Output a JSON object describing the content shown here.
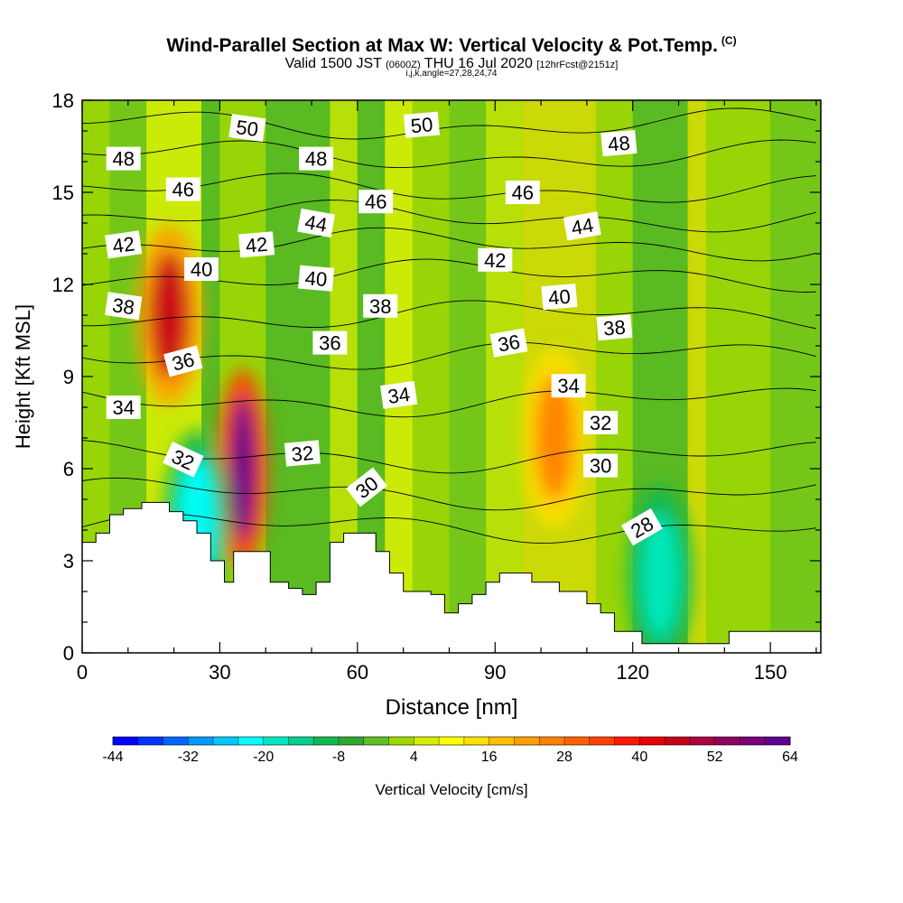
{
  "header": {
    "title": "Wind-Parallel Section at Max W: Vertical Velocity & Pot.Temp.",
    "copyright": "(C)",
    "valid_prefix": "Valid 1500 JST",
    "valid_utc": "(0600Z)",
    "valid_date": "THU 16 Jul 2020",
    "forecast": "[12hrFcst@2151z]",
    "indices": "i,j,k,angle=27,28,24,74"
  },
  "chart_data": {
    "type": "heatmap",
    "xlabel": "Distance [nm]",
    "ylabel": "Height [Kft MSL]",
    "xlim": [
      0,
      161
    ],
    "ylim": [
      0,
      18
    ],
    "x_ticks": [
      0,
      30,
      60,
      90,
      120,
      150
    ],
    "y_ticks": [
      0,
      3,
      6,
      9,
      12,
      15,
      18
    ],
    "colorbar": {
      "label": "Vertical Velocity [cm/s]",
      "min": -44,
      "max": 64,
      "step": 4,
      "tick_labels": [
        -44,
        -32,
        -20,
        -8,
        4,
        16,
        28,
        40,
        52,
        64
      ],
      "colors": [
        "#0000ff",
        "#0033ff",
        "#0066ff",
        "#0099ff",
        "#00c8ff",
        "#00ffff",
        "#00e8c0",
        "#00d090",
        "#10b850",
        "#30a830",
        "#60c020",
        "#a0d800",
        "#d8ec00",
        "#ffff00",
        "#ffe000",
        "#ffc000",
        "#ffa000",
        "#ff8000",
        "#ff6000",
        "#ff4000",
        "#ff1800",
        "#e80000",
        "#c80018",
        "#a80040",
        "#900060",
        "#780078",
        "#600090"
      ]
    },
    "terrain_kft": [
      [
        0,
        3.6
      ],
      [
        3,
        3.6
      ],
      [
        3,
        3.9
      ],
      [
        6,
        3.9
      ],
      [
        6,
        4.5
      ],
      [
        9,
        4.5
      ],
      [
        9,
        4.7
      ],
      [
        13,
        4.7
      ],
      [
        13,
        4.9
      ],
      [
        19,
        4.9
      ],
      [
        19,
        4.6
      ],
      [
        22,
        4.6
      ],
      [
        22,
        4.3
      ],
      [
        25,
        4.3
      ],
      [
        25,
        3.9
      ],
      [
        28,
        3.9
      ],
      [
        28,
        3.0
      ],
      [
        31,
        3.0
      ],
      [
        31,
        2.3
      ],
      [
        33,
        2.3
      ],
      [
        33,
        3.3
      ],
      [
        41,
        3.3
      ],
      [
        41,
        2.3
      ],
      [
        45,
        2.3
      ],
      [
        45,
        2.1
      ],
      [
        48,
        2.1
      ],
      [
        48,
        1.9
      ],
      [
        51,
        1.9
      ],
      [
        51,
        2.3
      ],
      [
        54,
        2.3
      ],
      [
        54,
        3.6
      ],
      [
        57,
        3.6
      ],
      [
        57,
        3.9
      ],
      [
        64,
        3.9
      ],
      [
        64,
        3.3
      ],
      [
        67,
        3.3
      ],
      [
        67,
        2.6
      ],
      [
        70,
        2.6
      ],
      [
        70,
        2.0
      ],
      [
        76,
        2.0
      ],
      [
        76,
        1.9
      ],
      [
        79,
        1.9
      ],
      [
        79,
        1.3
      ],
      [
        82,
        1.3
      ],
      [
        82,
        1.6
      ],
      [
        85,
        1.6
      ],
      [
        85,
        1.9
      ],
      [
        88,
        1.9
      ],
      [
        88,
        2.3
      ],
      [
        91,
        2.3
      ],
      [
        91,
        2.6
      ],
      [
        98,
        2.6
      ],
      [
        98,
        2.3
      ],
      [
        104,
        2.3
      ],
      [
        104,
        2.0
      ],
      [
        110,
        2.0
      ],
      [
        110,
        1.6
      ],
      [
        113,
        1.6
      ],
      [
        113,
        1.3
      ],
      [
        116,
        1.3
      ],
      [
        116,
        0.7
      ],
      [
        122,
        0.7
      ],
      [
        122,
        0.3
      ],
      [
        141,
        0.3
      ],
      [
        141,
        0.7
      ],
      [
        161,
        0.7
      ]
    ],
    "wmax_regions": [
      {
        "x": 19,
        "y": 11.0,
        "w": 45,
        "level": "red"
      },
      {
        "x": 35,
        "y": 6.0,
        "w": 64,
        "level": "maroon"
      },
      {
        "x": 103,
        "y": 7.0,
        "w": 25,
        "level": "orange"
      },
      {
        "x": 25,
        "y": 4.3,
        "w": -24,
        "level": "cyan"
      },
      {
        "x": 126,
        "y": 2.5,
        "w": -20,
        "level": "cyan"
      }
    ],
    "theta_contours": [
      {
        "label": "28",
        "y_kft": 4.1
      },
      {
        "label": "30",
        "y_kft": 5.2
      },
      {
        "label": "32",
        "y_kft": 6.4
      },
      {
        "label": "34",
        "y_kft": 8.2
      },
      {
        "label": "36",
        "y_kft": 9.7
      },
      {
        "label": "38",
        "y_kft": 11.0
      },
      {
        "label": "40",
        "y_kft": 12.3
      },
      {
        "label": "42",
        "y_kft": 13.3
      },
      {
        "label": "44",
        "y_kft": 14.2
      },
      {
        "label": "46",
        "y_kft": 15.1
      },
      {
        "label": "48",
        "y_kft": 16.2
      },
      {
        "label": "50",
        "y_kft": 17.2
      }
    ],
    "contour_labels": [
      {
        "text": "48",
        "x": 9,
        "y": 16.1,
        "rot": 0
      },
      {
        "text": "50",
        "x": 36,
        "y": 17.1,
        "rot": 8
      },
      {
        "text": "48",
        "x": 51,
        "y": 16.1,
        "rot": 0
      },
      {
        "text": "50",
        "x": 74,
        "y": 17.2,
        "rot": -5
      },
      {
        "text": "48",
        "x": 117,
        "y": 16.6,
        "rot": -5
      },
      {
        "text": "46",
        "x": 22,
        "y": 15.1,
        "rot": 0
      },
      {
        "text": "46",
        "x": 64,
        "y": 14.7,
        "rot": 0
      },
      {
        "text": "46",
        "x": 96,
        "y": 15.0,
        "rot": 0
      },
      {
        "text": "44",
        "x": 51,
        "y": 14.0,
        "rot": 10
      },
      {
        "text": "44",
        "x": 109,
        "y": 13.9,
        "rot": -10
      },
      {
        "text": "42",
        "x": 9,
        "y": 13.3,
        "rot": -8
      },
      {
        "text": "42",
        "x": 38,
        "y": 13.3,
        "rot": -5
      },
      {
        "text": "42",
        "x": 90,
        "y": 12.8,
        "rot": 0
      },
      {
        "text": "40",
        "x": 26,
        "y": 12.5,
        "rot": 0
      },
      {
        "text": "40",
        "x": 51,
        "y": 12.2,
        "rot": 5
      },
      {
        "text": "40",
        "x": 104,
        "y": 11.6,
        "rot": -5
      },
      {
        "text": "38",
        "x": 9,
        "y": 11.3,
        "rot": 8
      },
      {
        "text": "38",
        "x": 65,
        "y": 11.3,
        "rot": 0
      },
      {
        "text": "38",
        "x": 116,
        "y": 10.6,
        "rot": -5
      },
      {
        "text": "36",
        "x": 22,
        "y": 9.5,
        "rot": -15
      },
      {
        "text": "36",
        "x": 54,
        "y": 10.1,
        "rot": 0
      },
      {
        "text": "36",
        "x": 93,
        "y": 10.1,
        "rot": -10
      },
      {
        "text": "34",
        "x": 9,
        "y": 8.0,
        "rot": 0
      },
      {
        "text": "34",
        "x": 69,
        "y": 8.4,
        "rot": -8
      },
      {
        "text": "34",
        "x": 106,
        "y": 8.7,
        "rot": 0
      },
      {
        "text": "32",
        "x": 22,
        "y": 6.3,
        "rot": 25
      },
      {
        "text": "32",
        "x": 48,
        "y": 6.5,
        "rot": -5
      },
      {
        "text": "32",
        "x": 113,
        "y": 7.5,
        "rot": 0
      },
      {
        "text": "30",
        "x": 62,
        "y": 5.4,
        "rot": -38
      },
      {
        "text": "30",
        "x": 113,
        "y": 6.1,
        "rot": 0
      },
      {
        "text": "28",
        "x": 122,
        "y": 4.1,
        "rot": -30
      }
    ]
  }
}
